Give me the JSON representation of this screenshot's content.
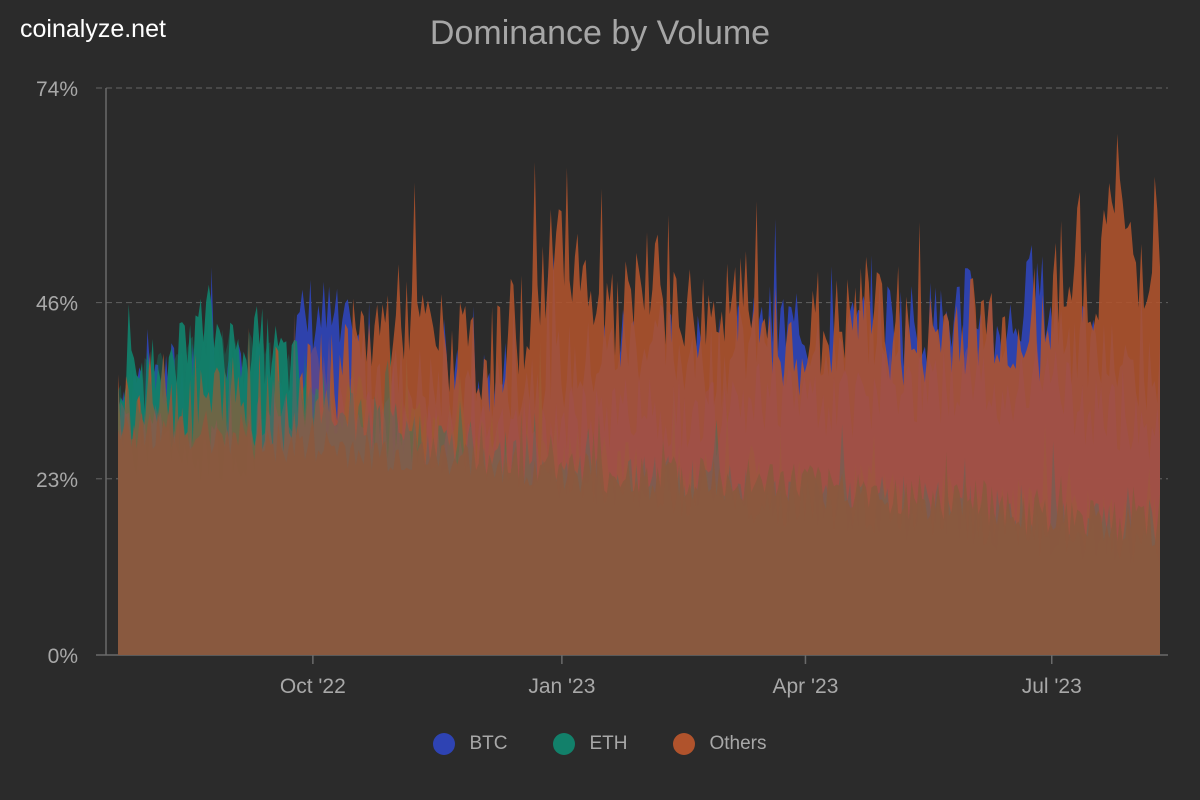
{
  "watermark": "coinalyze.net",
  "title": "Dominance by Volume",
  "colors": {
    "background": "#2b2b2b",
    "btc": "#2e43b3",
    "eth": "#12806a",
    "others": "#b0532c",
    "base_fill": "#8a583e",
    "grid": "#5a5a5a",
    "axis_text": "#a8a8a8"
  },
  "legend": [
    {
      "label": "BTC",
      "color": "#2e43b3"
    },
    {
      "label": "ETH",
      "color": "#12806a"
    },
    {
      "label": "Others",
      "color": "#b0532c"
    }
  ],
  "chart_data": {
    "type": "area",
    "title": "Dominance by Volume",
    "y_ticks": [
      "0%",
      "23%",
      "46%",
      "74%"
    ],
    "y_tick_values": [
      0,
      23,
      46,
      74
    ],
    "ylim": [
      0,
      74
    ],
    "x_ticks": [
      "Oct '22",
      "Jan '23",
      "Apr '23",
      "Jul '23"
    ],
    "x_tick_dates": [
      "2022-10-01",
      "2023-01-01",
      "2023-04-01",
      "2023-07-01"
    ],
    "x_range": [
      "2022-07-21",
      "2023-08-10"
    ],
    "grid": "horizontal dashed",
    "legend_position": "bottom",
    "series": [
      {
        "name": "BTC",
        "color": "#2e43b3",
        "dates": [
          "2022-07-21",
          "2022-08-06",
          "2022-08-23",
          "2022-09-06",
          "2022-09-20",
          "2022-10-01",
          "2022-10-08",
          "2022-10-20",
          "2022-11-01",
          "2022-11-20",
          "2022-12-10",
          "2022-12-25",
          "2023-01-10",
          "2023-01-25",
          "2023-02-10",
          "2023-03-01",
          "2023-03-20",
          "2023-04-01",
          "2023-04-15",
          "2023-05-01",
          "2023-05-15",
          "2023-06-01",
          "2023-06-15",
          "2023-06-25",
          "2023-07-10",
          "2023-07-25",
          "2023-08-10"
        ],
        "values": [
          35,
          36,
          34,
          35,
          38,
          45,
          43,
          38,
          36,
          34,
          36,
          37,
          38,
          41,
          40,
          38,
          43,
          42,
          41,
          44,
          43,
          45,
          42,
          48,
          40,
          38,
          36
        ]
      },
      {
        "name": "ETH",
        "color": "#12806a",
        "dates": [
          "2022-07-21",
          "2022-08-01",
          "2022-08-12",
          "2022-08-23",
          "2022-09-01",
          "2022-09-10",
          "2022-09-22",
          "2022-10-01",
          "2022-10-15",
          "2022-11-01",
          "2022-11-20",
          "2022-12-10",
          "2023-01-01",
          "2023-02-01",
          "2023-03-01",
          "2023-04-01",
          "2023-05-01",
          "2023-06-01",
          "2023-07-01",
          "2023-08-10"
        ],
        "values": [
          35,
          37,
          38,
          44,
          40,
          41,
          38,
          34,
          32,
          30,
          28,
          27,
          25,
          23,
          22,
          21,
          20,
          19,
          17,
          16
        ]
      },
      {
        "name": "Others",
        "color": "#b0532c",
        "dates": [
          "2022-07-21",
          "2022-08-10",
          "2022-09-10",
          "2022-10-01",
          "2022-10-22",
          "2022-11-05",
          "2022-11-20",
          "2022-12-05",
          "2022-12-20",
          "2023-01-01",
          "2023-01-10",
          "2023-01-20",
          "2023-02-05",
          "2023-02-20",
          "2023-03-10",
          "2023-03-25",
          "2023-04-10",
          "2023-04-25",
          "2023-05-10",
          "2023-05-25",
          "2023-06-10",
          "2023-06-25",
          "2023-07-05",
          "2023-07-15",
          "2023-07-25",
          "2023-08-01",
          "2023-08-10"
        ],
        "values": [
          32,
          33,
          33,
          34,
          42,
          45,
          40,
          38,
          45,
          55,
          50,
          43,
          48,
          44,
          46,
          40,
          42,
          45,
          40,
          43,
          44,
          40,
          52,
          45,
          62,
          50,
          55
        ]
      }
    ],
    "baseline": {
      "name": "",
      "color": "#8a583e",
      "dates": [
        "2022-07-21",
        "2022-09-01",
        "2022-10-01",
        "2022-11-01",
        "2022-12-01",
        "2023-01-01",
        "2023-02-01",
        "2023-03-01",
        "2023-04-01",
        "2023-05-01",
        "2023-06-01",
        "2023-07-01",
        "2023-08-10"
      ],
      "values": [
        30,
        29,
        27,
        26,
        25,
        24,
        23,
        23,
        22,
        21,
        20,
        18,
        17
      ]
    }
  }
}
